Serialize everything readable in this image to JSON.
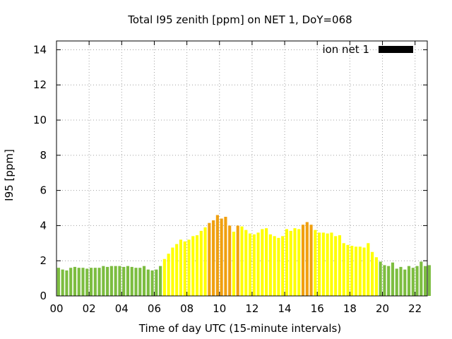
{
  "chart_data": {
    "type": "bar",
    "title": "Total I95 zenith [ppm] on NET 1, DoY=068",
    "xlabel": "Time of day UTC (15-minute intervals)",
    "ylabel": "I95 [ppm]",
    "xlim": [
      0,
      22.75
    ],
    "ylim": [
      0,
      14.5
    ],
    "grid": true,
    "legend": {
      "position": "top-right",
      "entries": [
        {
          "name": "ion net 1",
          "color": "#000000"
        }
      ]
    },
    "x_ticks": [
      "00",
      "02",
      "04",
      "06",
      "08",
      "10",
      "12",
      "14",
      "16",
      "18",
      "20",
      "22"
    ],
    "x_tick_values": [
      0,
      2,
      4,
      6,
      8,
      10,
      12,
      14,
      16,
      18,
      20,
      22
    ],
    "y_ticks": [
      "0",
      "2",
      "4",
      "6",
      "8",
      "10",
      "12",
      "14"
    ],
    "y_tick_values": [
      0,
      2,
      4,
      6,
      8,
      10,
      12,
      14
    ],
    "interval_hours": 0.25,
    "color_thresholds": {
      "low": {
        "max": 2,
        "color": "#7cbd40"
      },
      "mid": {
        "max": 4,
        "color": "#ffff00"
      },
      "high": {
        "color": "#f0a010"
      }
    },
    "values": [
      1.6,
      1.5,
      1.45,
      1.6,
      1.65,
      1.6,
      1.6,
      1.55,
      1.6,
      1.6,
      1.6,
      1.7,
      1.65,
      1.7,
      1.7,
      1.7,
      1.65,
      1.7,
      1.65,
      1.6,
      1.6,
      1.7,
      1.5,
      1.45,
      1.5,
      1.7,
      2.1,
      2.4,
      2.75,
      2.95,
      3.2,
      3.1,
      3.2,
      3.4,
      3.45,
      3.7,
      3.9,
      4.15,
      4.3,
      4.6,
      4.4,
      4.5,
      4.0,
      3.65,
      4.0,
      3.95,
      3.75,
      3.55,
      3.5,
      3.6,
      3.8,
      3.85,
      3.5,
      3.4,
      3.3,
      3.4,
      3.8,
      3.7,
      3.85,
      3.8,
      4.05,
      4.2,
      4.05,
      3.75,
      3.6,
      3.6,
      3.55,
      3.6,
      3.4,
      3.45,
      3.0,
      2.9,
      2.85,
      2.8,
      2.8,
      2.75,
      3.0,
      2.5,
      2.2,
      1.95,
      1.75,
      1.7,
      1.9,
      1.55,
      1.65,
      1.5,
      1.7,
      1.6,
      1.7,
      1.95,
      1.7,
      1.75
    ]
  }
}
